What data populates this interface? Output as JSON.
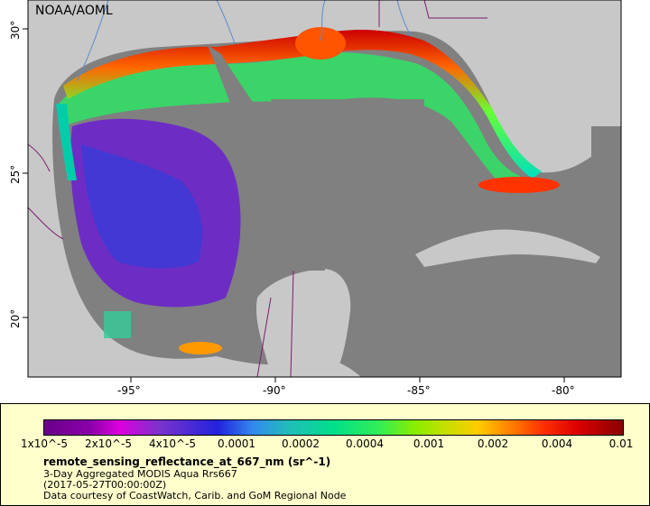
{
  "map": {
    "credit": "NOAA/AOML",
    "x_ticks": [
      "-95°",
      "-90°",
      "-85°",
      "-80°"
    ],
    "y_ticks": [
      "30°",
      "25°",
      "20°"
    ],
    "colors": {
      "land": "#c8c8c8",
      "nodata_water": "#808080",
      "borders": "#7a1e6e",
      "rivers": "#5b8bd0"
    }
  },
  "legend": {
    "ticks": [
      "1x10^-5",
      "2x10^-5",
      "4x10^-5",
      "0.0001",
      "0.0002",
      "0.0004",
      "0.001",
      "0.002",
      "0.004",
      "0.01"
    ],
    "title": "remote_sensing_reflectance_at_667_nm (sr^-1)",
    "line1": "3-Day Aggregated MODIS Aqua Rrs667",
    "line2": "(2017-05-27T00:00:00Z)",
    "line3": "Data courtesy of CoastWatch, Carib. and GoM Regional Node"
  }
}
